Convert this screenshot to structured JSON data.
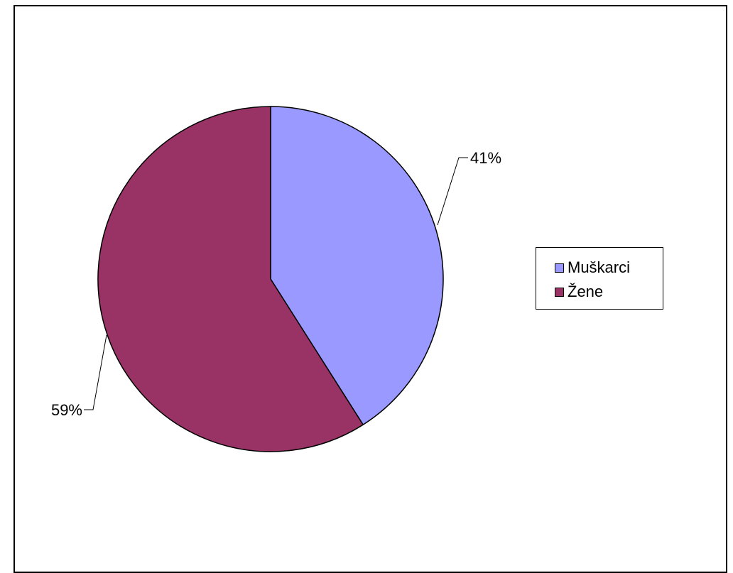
{
  "chart_data": {
    "type": "pie",
    "title": "",
    "slices": [
      {
        "name": "Muškarci",
        "value": 41,
        "label": "41%",
        "color": "#9999FF"
      },
      {
        "name": "Žene",
        "value": 59,
        "label": "59%",
        "color": "#993366"
      }
    ],
    "start_angle_deg": 0,
    "direction": "clockwise",
    "legend_position": "right"
  }
}
